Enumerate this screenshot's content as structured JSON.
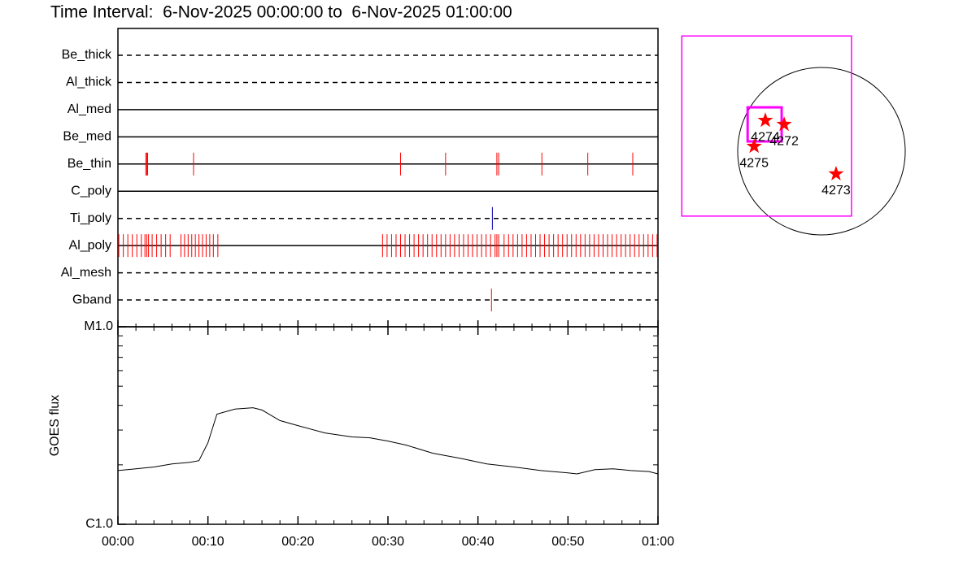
{
  "title": "Time Interval:  6-Nov-2025 00:00:00 to  6-Nov-2025 01:00:00",
  "chart_data": [
    {
      "type": "timeline",
      "xlim": [
        0,
        60
      ],
      "series": [
        {
          "name": "Be_thick",
          "line_style": "dashed",
          "color": "#ff0000",
          "values": []
        },
        {
          "name": "Al_thick",
          "line_style": "dashed",
          "color": "#ff0000",
          "values": []
        },
        {
          "name": "Al_med",
          "line_style": "solid",
          "color": "#ff0000",
          "values": []
        },
        {
          "name": "Be_med",
          "line_style": "solid",
          "color": "#ff0000",
          "values": []
        },
        {
          "name": "Be_thin",
          "line_style": "solid",
          "color": "#ff0000",
          "values": [
            3.1,
            3.2,
            3.3,
            8.4,
            31.4,
            36.4,
            42.1,
            42.3,
            47.1,
            52.2,
            57.2
          ]
        },
        {
          "name": "C_poly",
          "line_style": "solid",
          "color": "#ff0000",
          "values": []
        },
        {
          "name": "Ti_poly",
          "line_style": "dashed",
          "color": "#0000aa",
          "values": [
            41.6
          ]
        },
        {
          "name": "Al_poly",
          "line_style": "solid",
          "color": "#ff0000",
          "values": [
            0.1,
            0.6,
            1.1,
            1.6,
            2.1,
            2.6,
            3.0,
            3.2,
            3.4,
            3.8,
            4.3,
            4.8,
            5.3,
            5.8,
            7.0,
            7.4,
            7.8,
            8.2,
            8.6,
            9.0,
            9.4,
            9.8,
            10.2,
            10.6,
            11.1,
            29.4,
            29.9,
            30.4,
            30.9,
            31.4,
            31.9,
            32.4,
            32.9,
            33.4,
            33.9,
            34.4,
            34.9,
            35.4,
            35.9,
            36.4,
            36.9,
            37.4,
            37.9,
            38.4,
            38.9,
            39.4,
            39.9,
            40.4,
            40.9,
            41.4,
            41.9,
            42.1,
            42.3,
            42.9,
            43.4,
            43.9,
            44.4,
            44.9,
            45.4,
            45.9,
            46.4,
            46.9,
            47.4,
            47.9,
            48.4,
            48.9,
            49.4,
            49.9,
            50.4,
            50.9,
            51.4,
            51.9,
            52.4,
            52.9,
            53.4,
            53.9,
            54.4,
            54.9,
            55.4,
            55.9,
            56.4,
            56.9,
            57.4,
            57.9,
            58.4,
            58.9,
            59.4,
            59.9
          ]
        },
        {
          "name": "Al_mesh",
          "line_style": "dashed",
          "color": "#ff0000",
          "values": []
        },
        {
          "name": "Gband",
          "line_style": "dashed",
          "color": "#ff0000",
          "values": [
            41.5
          ]
        }
      ]
    },
    {
      "type": "line",
      "ylabel": "GOES flux",
      "color": "#000000",
      "log_y": true,
      "x": [
        0,
        2,
        4,
        6,
        8,
        9,
        10,
        11,
        13,
        15,
        16,
        18,
        20,
        23,
        26,
        28,
        30,
        32,
        35,
        38,
        41,
        44,
        47,
        50,
        51,
        53,
        55,
        57,
        59,
        60
      ],
      "values": [
        1.87e-06,
        1.91e-06,
        1.95e-06,
        2.02e-06,
        2.06e-06,
        2.1e-06,
        2.59e-06,
        3.61e-06,
        3.83e-06,
        3.89e-06,
        3.79e-06,
        3.35e-06,
        3.16e-06,
        2.9e-06,
        2.77e-06,
        2.74e-06,
        2.64e-06,
        2.52e-06,
        2.29e-06,
        2.16e-06,
        2.02e-06,
        1.95e-06,
        1.87e-06,
        1.82e-06,
        1.8e-06,
        1.89e-06,
        1.91e-06,
        1.87e-06,
        1.85e-06,
        1.8e-06
      ],
      "ylim": [
        1e-06,
        1e-05
      ],
      "yticks": [
        {
          "value": 1e-06,
          "label": "C1.0"
        },
        {
          "value": 1e-05,
          "label": "M1.0"
        }
      ],
      "minor_yticks": [
        2e-06,
        3e-06,
        4e-06,
        5e-06,
        6e-06,
        7e-06,
        8e-06,
        9e-06
      ],
      "xlim": [
        0,
        60
      ],
      "xticks": [
        {
          "value": 0,
          "label": "00:00"
        },
        {
          "value": 10,
          "label": "00:10"
        },
        {
          "value": 20,
          "label": "00:20"
        },
        {
          "value": 30,
          "label": "00:30"
        },
        {
          "value": 40,
          "label": "00:40"
        },
        {
          "value": 50,
          "label": "00:50"
        },
        {
          "value": 60,
          "label": "01:00"
        }
      ],
      "minor_xticks": [
        2,
        4,
        6,
        8,
        12,
        14,
        16,
        18,
        22,
        24,
        26,
        28,
        32,
        34,
        36,
        38,
        42,
        44,
        46,
        48,
        52,
        54,
        56,
        58
      ]
    },
    {
      "type": "map",
      "disk_radius": 970,
      "color": "#ff0000",
      "box_color": "#ff00ff",
      "labels": [
        "4274",
        "4272",
        "4275",
        "4273"
      ],
      "x": [
        -650,
        -432,
        -780,
        169
      ],
      "y": [
        357,
        310,
        56,
        -263
      ],
      "boxes": [
        {
          "x": [
            -1617,
            348
          ],
          "y": [
            1335,
            -752
          ]
        },
        {
          "x": [
            -855,
            -461
          ],
          "y": [
            508,
            113
          ]
        }
      ]
    }
  ]
}
